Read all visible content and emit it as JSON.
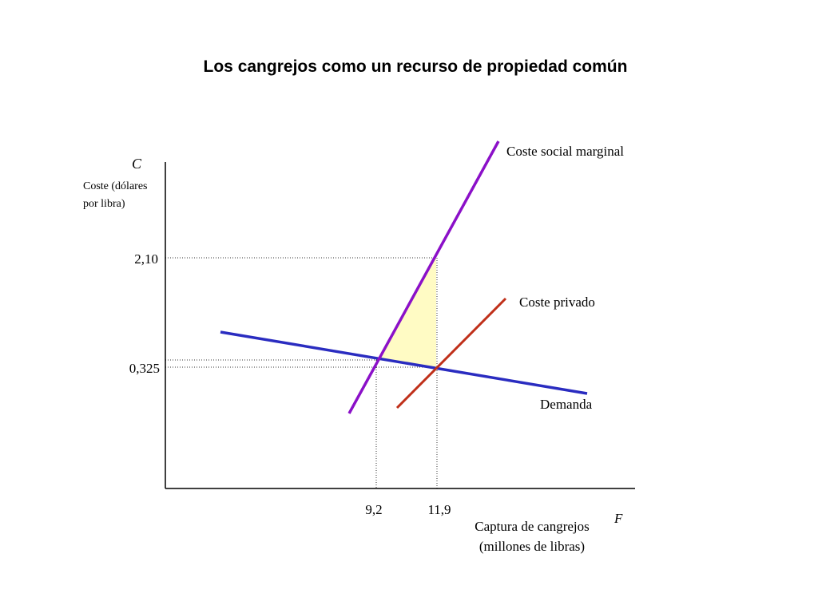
{
  "title": "Los cangrejos como un recurso de propiedad común",
  "chart_data": {
    "type": "line",
    "title": "Los cangrejos como un recurso de propiedad común",
    "y_axis": {
      "symbol": "C",
      "label_lines": [
        "Coste (dólares",
        "por libra)"
      ],
      "ticks": [
        "2,10",
        "0,325"
      ]
    },
    "x_axis": {
      "symbol": "F",
      "label_lines": [
        "Captura de cangrejos",
        "(millones de libras)"
      ],
      "ticks": [
        "9,2",
        "11,9"
      ]
    },
    "series": [
      {
        "name": "Coste social marginal",
        "color": "#8B10C8"
      },
      {
        "name": "Coste privado",
        "color": "#C0301A"
      },
      {
        "name": "Demanda",
        "color": "#2A2CC0"
      }
    ],
    "shaded_area": {
      "color": "#FFFBC4",
      "meaning": "deadweight loss"
    },
    "points": [
      {
        "x": "11,9",
        "y": "0,325",
        "meaning": "private equilibrium"
      },
      {
        "x": "9,2",
        "meaning": "social optimum"
      },
      {
        "x": "11,9",
        "y": "2,10",
        "meaning": "marginal social cost at private equilibrium"
      }
    ]
  }
}
